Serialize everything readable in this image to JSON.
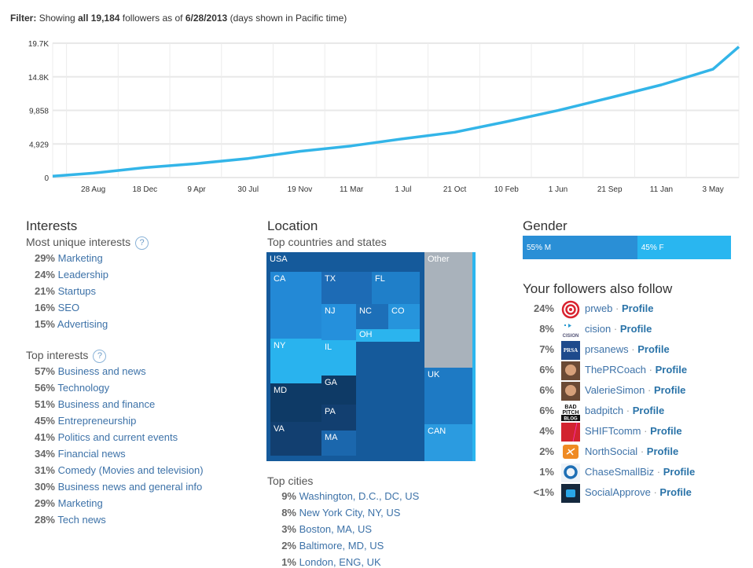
{
  "filter": {
    "label": "Filter:",
    "text1": "Showing",
    "bold1": "all 19,184",
    "text2": "followers as of",
    "bold2": "6/28/2013",
    "text3": "(days shown in Pacific time)"
  },
  "chart_data": {
    "type": "line",
    "title": "",
    "xlabel": "",
    "ylabel": "",
    "grid": true,
    "y_ticks": [
      {
        "v": 0,
        "label": "0"
      },
      {
        "v": 4929,
        "label": "4,929"
      },
      {
        "v": 9858,
        "label": "9,858"
      },
      {
        "v": 14787,
        "label": "14.8K"
      },
      {
        "v": 19716,
        "label": "19.7K"
      }
    ],
    "ylim": [
      0,
      19716
    ],
    "xlim": [
      "2009-06-01",
      "2013-06-28"
    ],
    "x_ticks": [
      {
        "d": "2009-08-28",
        "label": "28 Aug"
      },
      {
        "d": "2009-12-18",
        "label": "18 Dec"
      },
      {
        "d": "2010-04-09",
        "label": "9 Apr"
      },
      {
        "d": "2010-07-30",
        "label": "30 Jul"
      },
      {
        "d": "2010-11-19",
        "label": "19 Nov"
      },
      {
        "d": "2011-03-11",
        "label": "11 Mar"
      },
      {
        "d": "2011-07-01",
        "label": "1 Jul"
      },
      {
        "d": "2011-10-21",
        "label": "21 Oct"
      },
      {
        "d": "2012-02-10",
        "label": "10 Feb"
      },
      {
        "d": "2012-06-01",
        "label": "1 Jun"
      },
      {
        "d": "2012-09-21",
        "label": "21 Sep"
      },
      {
        "d": "2013-01-11",
        "label": "11 Jan"
      },
      {
        "d": "2013-05-03",
        "label": "3 May"
      }
    ],
    "series": [
      {
        "color": "#33b5e8",
        "points": [
          [
            "2009-06-01",
            200
          ],
          [
            "2009-08-28",
            650
          ],
          [
            "2009-12-18",
            1450
          ],
          [
            "2010-04-09",
            2050
          ],
          [
            "2010-07-30",
            2800
          ],
          [
            "2010-11-19",
            3850
          ],
          [
            "2011-03-11",
            4650
          ],
          [
            "2011-07-01",
            5700
          ],
          [
            "2011-10-21",
            6650
          ],
          [
            "2012-02-10",
            8200
          ],
          [
            "2012-06-01",
            9850
          ],
          [
            "2012-09-21",
            11700
          ],
          [
            "2013-01-11",
            13600
          ],
          [
            "2013-05-03",
            15900
          ],
          [
            "2013-06-28",
            19184
          ]
        ]
      }
    ]
  },
  "interests": {
    "title": "Interests",
    "unique_label": "Most unique interests",
    "help": "?",
    "unique": [
      {
        "pct": "29%",
        "name": "Marketing"
      },
      {
        "pct": "24%",
        "name": "Leadership"
      },
      {
        "pct": "21%",
        "name": "Startups"
      },
      {
        "pct": "16%",
        "name": "SEO"
      },
      {
        "pct": "15%",
        "name": "Advertising"
      }
    ],
    "top_label": "Top interests",
    "top": [
      {
        "pct": "57%",
        "name": "Business and news"
      },
      {
        "pct": "56%",
        "name": "Technology"
      },
      {
        "pct": "51%",
        "name": "Business and finance"
      },
      {
        "pct": "45%",
        "name": "Entrepreneurship"
      },
      {
        "pct": "41%",
        "name": "Politics and current events"
      },
      {
        "pct": "34%",
        "name": "Financial news"
      },
      {
        "pct": "31%",
        "name": "Comedy (Movies and television)"
      },
      {
        "pct": "30%",
        "name": "Business news and general info"
      },
      {
        "pct": "29%",
        "name": "Marketing"
      },
      {
        "pct": "28%",
        "name": "Tech news"
      }
    ]
  },
  "location": {
    "title": "Location",
    "countries_label": "Top countries and states",
    "treemap": [
      {
        "label": "USA",
        "color": "#155a9b"
      },
      {
        "label": "CA",
        "color": "#2389d6"
      },
      {
        "label": "TX",
        "color": "#1d6bb5"
      },
      {
        "label": "FL",
        "color": "#1f7fc9"
      },
      {
        "label": "NJ",
        "color": "#2590dc"
      },
      {
        "label": "NC",
        "color": "#1d6fb8"
      },
      {
        "label": "CO",
        "color": "#2694dc"
      },
      {
        "label": "OH",
        "color": "#2bb4ee"
      },
      {
        "label": "NY",
        "color": "#29b3ee"
      },
      {
        "label": "IL",
        "color": "#29b3ee"
      },
      {
        "label": "MD",
        "color": "#0e3a66"
      },
      {
        "label": "GA",
        "color": "#0e3a66"
      },
      {
        "label": "PA",
        "color": "#123f70"
      },
      {
        "label": "VA",
        "color": "#123f70"
      },
      {
        "label": "MA",
        "color": "#1b67ad"
      },
      {
        "label": "Other",
        "color": "#a9b2bb"
      },
      {
        "label": "UK",
        "color": "#1e7ac4"
      },
      {
        "label": "CAN",
        "color": "#2b9be0"
      }
    ],
    "cities_label": "Top cities",
    "cities": [
      {
        "pct": "9%",
        "name": "Washington, D.C., DC, US"
      },
      {
        "pct": "8%",
        "name": "New York City, NY, US"
      },
      {
        "pct": "3%",
        "name": "Boston, MA, US"
      },
      {
        "pct": "2%",
        "name": "Baltimore, MD, US"
      },
      {
        "pct": "1%",
        "name": "London, ENG, UK"
      }
    ]
  },
  "gender": {
    "title": "Gender",
    "male": {
      "label": "55% M",
      "value": 55,
      "color": "#2a8fd6"
    },
    "female": {
      "label": "45% F",
      "value": 45,
      "color": "#29b6f0"
    }
  },
  "also_follow": {
    "title": "Your followers also follow",
    "profile_label": "Profile",
    "sep": "·",
    "items": [
      {
        "pct": "24%",
        "name": "prweb",
        "icon": "prweb-logo"
      },
      {
        "pct": "8%",
        "name": "cision",
        "icon": "cision-logo"
      },
      {
        "pct": "7%",
        "name": "prsanews",
        "icon": "prsa-logo"
      },
      {
        "pct": "6%",
        "name": "ThePRCoach",
        "icon": "avatar-photo"
      },
      {
        "pct": "6%",
        "name": "ValerieSimon",
        "icon": "avatar-photo"
      },
      {
        "pct": "6%",
        "name": "badpitch",
        "icon": "badpitch-logo"
      },
      {
        "pct": "4%",
        "name": "SHIFTcomm",
        "icon": "shiftcomm-logo"
      },
      {
        "pct": "2%",
        "name": "NorthSocial",
        "icon": "northsocial-logo"
      },
      {
        "pct": "1%",
        "name": "ChaseSmallBiz",
        "icon": "chase-logo"
      },
      {
        "pct": "<1%",
        "name": "SocialApprove",
        "icon": "socialapprove-logo"
      }
    ]
  }
}
